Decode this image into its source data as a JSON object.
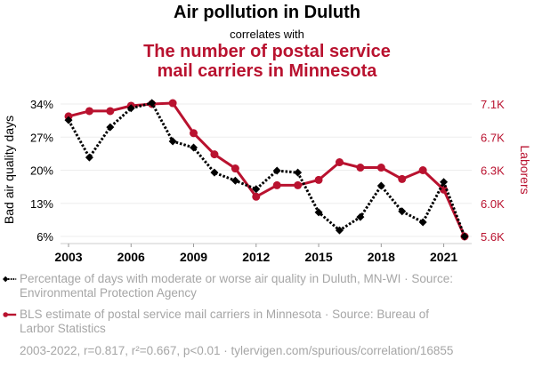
{
  "titles": {
    "main": "Air pollution in Duluth",
    "connector": "correlates with",
    "secondary_line1": "The number of postal service",
    "secondary_line2": "mail carriers in Minnesota"
  },
  "colors": {
    "series1": "#000000",
    "series2": "#b9122f",
    "muted_text": "#a6a6a6",
    "grid": "#eeeeee"
  },
  "legend": {
    "series1": "Percentage of days with moderate or worse air quality in Duluth, MN-WI · Source: Environmental Protection Agency",
    "series2": "BLS estimate of postal service mail carriers in Minnesota · Source: Bureau of Larbor Statistics"
  },
  "footer": "2003-2022, r=0.817, r²=0.667, p<0.01 · tylervigen.com/spurious/correlation/16855",
  "chart_data": {
    "type": "line",
    "title": "Air pollution in Duluth correlates with The number of postal service mail carriers in Minnesota",
    "x": [
      2003,
      2004,
      2005,
      2006,
      2007,
      2008,
      2009,
      2010,
      2011,
      2012,
      2013,
      2014,
      2015,
      2016,
      2017,
      2018,
      2019,
      2020,
      2021,
      2022
    ],
    "xlabel": "",
    "x_ticks": [
      2003,
      2006,
      2009,
      2012,
      2015,
      2018,
      2021
    ],
    "xlim": [
      2003,
      2022
    ],
    "grid": true,
    "legend_position": "bottom",
    "y_left": {
      "label": "Bad air quality days",
      "ticks": [
        "34%",
        "27%",
        "20%",
        "13%",
        "6%"
      ],
      "tick_values": [
        34,
        27,
        20,
        13,
        6
      ],
      "ylim": [
        6,
        34
      ]
    },
    "y_right": {
      "label": "Laborers",
      "ticks": [
        "7.1K",
        "6.7K",
        "6.3K",
        "6.0K",
        "5.6K"
      ],
      "tick_values": [
        7100,
        6725,
        6350,
        5975,
        5600
      ],
      "ylim": [
        5600,
        7100
      ]
    },
    "series": [
      {
        "name": "Percentage of days with moderate or worse air quality in Duluth, MN-WI",
        "axis": "left",
        "style": "dotted",
        "marker": "diamond",
        "color": "#000000",
        "values": [
          30.6,
          22.7,
          29.1,
          33.1,
          34.2,
          26.1,
          24.8,
          19.5,
          17.8,
          16.0,
          19.9,
          19.5,
          11.1,
          7.3,
          10.1,
          16.7,
          11.3,
          9.0,
          17.5,
          6.0
        ]
      },
      {
        "name": "BLS estimate of postal service mail carriers in Minnesota",
        "axis": "right",
        "style": "solid",
        "marker": "circle",
        "color": "#b9122f",
        "values": [
          6960,
          7020,
          7020,
          7080,
          7100,
          7110,
          6770,
          6530,
          6370,
          6050,
          6180,
          6180,
          6240,
          6440,
          6380,
          6380,
          6250,
          6350,
          6130,
          5600
        ]
      }
    ]
  }
}
